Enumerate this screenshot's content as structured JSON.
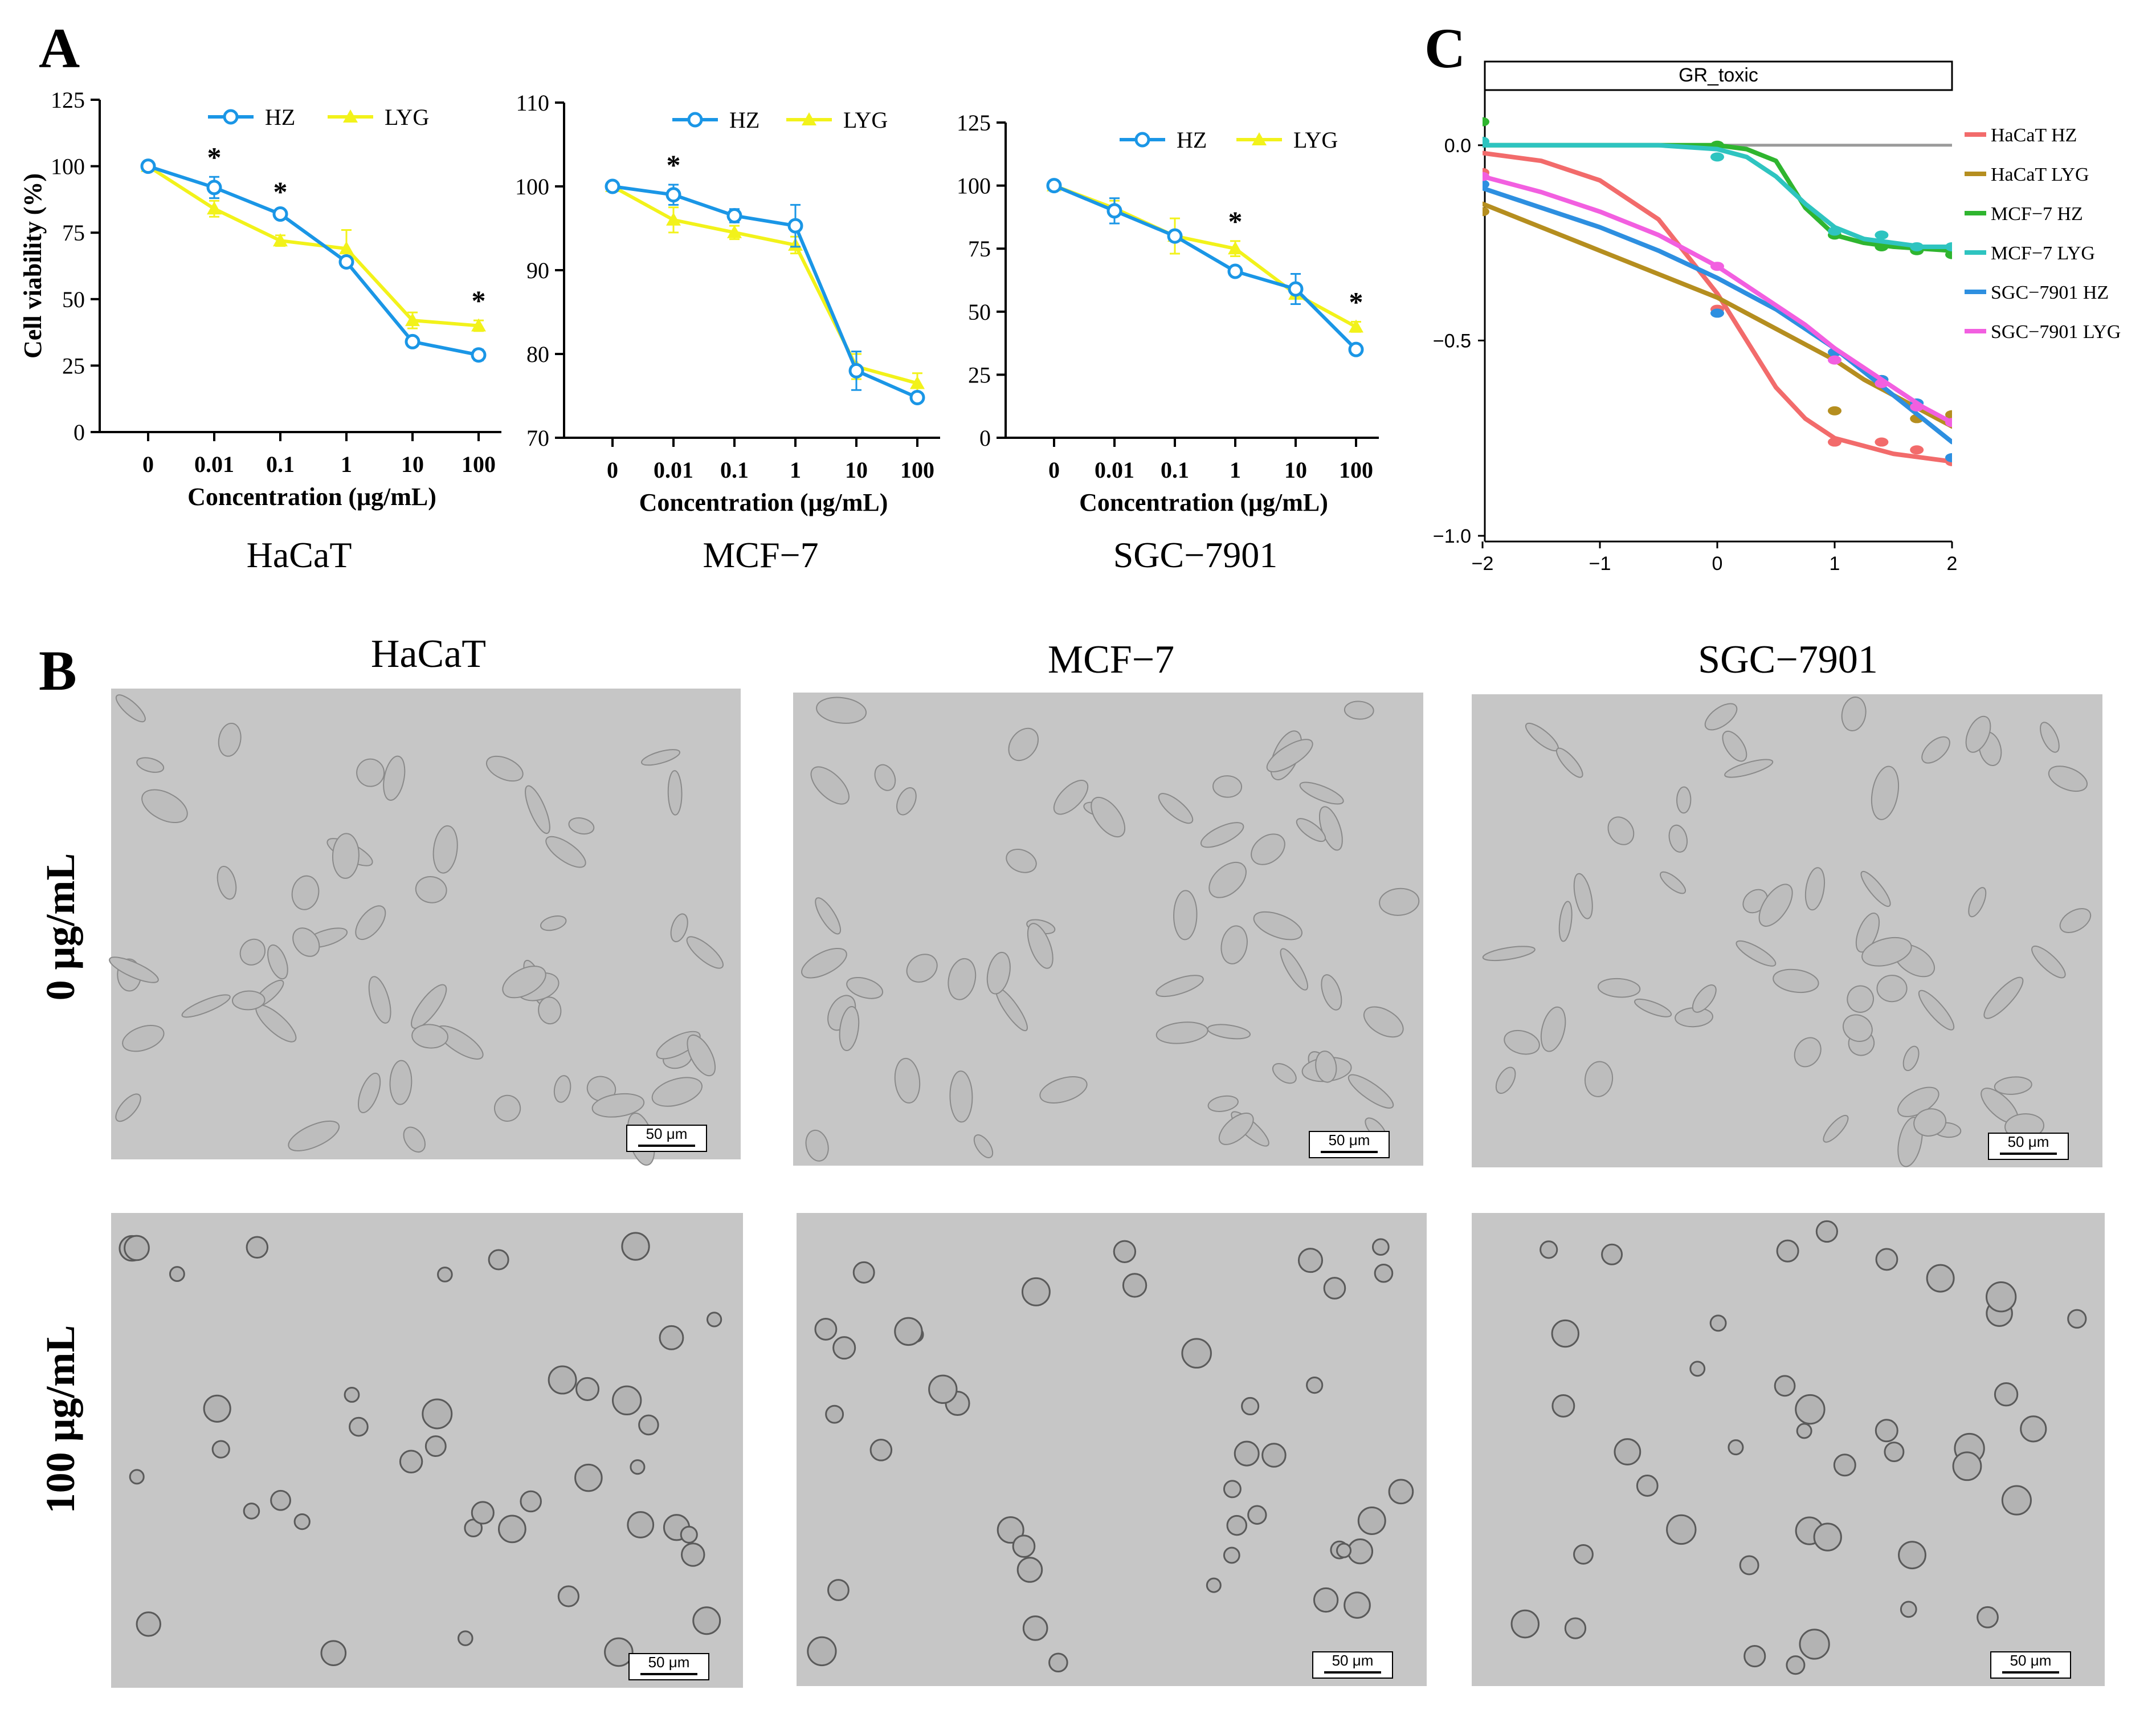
{
  "panel_letters": [
    "A",
    "B",
    "C"
  ],
  "colors": {
    "hz": "#1a96e6",
    "lyg": "#f2f21a",
    "axis": "#000000",
    "micro_bg": "#c6c6c6",
    "micro_cell": "#8a8a8a",
    "zero_line": "#9a9a9a"
  },
  "panel_a": {
    "x_ticks": [
      "0",
      "0.01",
      "0.1",
      "1",
      "10",
      "100"
    ],
    "xlabel": "Concentration (μg/mL)",
    "ylabel": "Cell viability (%)",
    "legend": [
      "HZ",
      "LYG"
    ],
    "star": "*"
  },
  "panel_b": {
    "columns": [
      "HaCaT",
      "MCF−7",
      "SGC−7901"
    ],
    "rows": [
      "0 μg/mL",
      "100 μg/mL"
    ],
    "scale_bar": "50 μm"
  },
  "chart_data": [
    {
      "type": "line",
      "title": "HaCaT",
      "xlabel": "Concentration (μg/mL)",
      "ylabel": "Cell viability (%)",
      "categories": [
        "0",
        "0.01",
        "0.1",
        "1",
        "10",
        "100"
      ],
      "ylim": [
        0,
        125
      ],
      "yticks": [
        0,
        25,
        50,
        75,
        100,
        125
      ],
      "series": [
        {
          "name": "HZ",
          "values": [
            100,
            92,
            82,
            64,
            34,
            29
          ],
          "errors": [
            0,
            4,
            1,
            1,
            1,
            2
          ]
        },
        {
          "name": "LYG",
          "values": [
            100,
            84,
            72,
            69,
            42,
            40
          ],
          "errors": [
            0,
            3,
            2,
            7,
            3,
            2
          ]
        }
      ],
      "significant": [
        "0.01",
        "0.1",
        "100"
      ]
    },
    {
      "type": "line",
      "title": "MCF−7",
      "xlabel": "Concentration (μg/mL)",
      "ylabel": "",
      "categories": [
        "0",
        "0.01",
        "0.1",
        "1",
        "10",
        "100"
      ],
      "ylim": [
        70,
        110
      ],
      "yticks": [
        70,
        80,
        90,
        100,
        110
      ],
      "series": [
        {
          "name": "HZ",
          "values": [
            100,
            99,
            96.5,
            95.3,
            78,
            74.8
          ],
          "errors": [
            0,
            1.2,
            0.8,
            2.5,
            2.3,
            0.5
          ]
        },
        {
          "name": "LYG",
          "values": [
            100,
            96,
            94.5,
            93,
            78.5,
            76.5
          ],
          "errors": [
            0,
            1.5,
            0.8,
            1,
            1.5,
            1.2
          ]
        }
      ],
      "significant": [
        "0.01"
      ]
    },
    {
      "type": "line",
      "title": "SGC−7901",
      "xlabel": "Concentration (μg/mL)",
      "ylabel": "",
      "categories": [
        "0",
        "0.01",
        "0.1",
        "1",
        "10",
        "100"
      ],
      "ylim": [
        0,
        125
      ],
      "yticks": [
        0,
        25,
        50,
        75,
        100,
        125
      ],
      "series": [
        {
          "name": "HZ",
          "values": [
            100,
            90,
            80,
            66,
            59,
            35
          ],
          "errors": [
            0,
            5,
            2,
            1,
            6,
            2
          ]
        },
        {
          "name": "LYG",
          "values": [
            100,
            91,
            80,
            75,
            57,
            44
          ],
          "errors": [
            0,
            3,
            7,
            3,
            4,
            2
          ]
        }
      ],
      "significant": [
        "1",
        "100"
      ]
    },
    {
      "type": "line",
      "title": "GR_toxic",
      "xlabel": "",
      "ylabel": "",
      "xlim": [
        -2,
        2
      ],
      "ylim": [
        -1.0,
        0.15
      ],
      "xticks": [
        -2,
        -1,
        0,
        1,
        2
      ],
      "xtick_labels": [
        "−2",
        "−1",
        "0",
        "1",
        "2"
      ],
      "yticks": [
        0.0,
        -0.5,
        -1.0
      ],
      "ytick_labels": [
        "0.0",
        "−0.5",
        "−1.0"
      ],
      "x": [
        -2,
        -1.5,
        -1,
        -0.5,
        0,
        0.25,
        0.5,
        0.75,
        1,
        1.25,
        1.5,
        1.75,
        2
      ],
      "series": [
        {
          "name": "HaCaT HZ",
          "color": "#f26b6b",
          "values": [
            -0.02,
            -0.04,
            -0.09,
            -0.19,
            -0.38,
            -0.5,
            -0.62,
            -0.7,
            -0.75,
            -0.77,
            -0.79,
            -0.8,
            -0.81
          ],
          "points": [
            [
              -2,
              -0.07
            ],
            [
              0,
              -0.42
            ],
            [
              1,
              -0.76
            ],
            [
              1.4,
              -0.76
            ],
            [
              1.7,
              -0.78
            ],
            [
              2,
              -0.81
            ]
          ]
        },
        {
          "name": "HaCaT LYG",
          "color": "#b58e1f",
          "values": [
            -0.15,
            -0.21,
            -0.27,
            -0.33,
            -0.39,
            -0.43,
            -0.47,
            -0.51,
            -0.55,
            -0.6,
            -0.64,
            -0.68,
            -0.72
          ],
          "points": [
            [
              -2,
              -0.17
            ],
            [
              -2,
              -0.08
            ],
            [
              1,
              -0.68
            ],
            [
              1.4,
              -0.6
            ],
            [
              1.7,
              -0.7
            ],
            [
              2,
              -0.69
            ]
          ]
        },
        {
          "name": "MCF−7 HZ",
          "color": "#2fb52f",
          "values": [
            0,
            0,
            0,
            0,
            0,
            -0.01,
            -0.04,
            -0.16,
            -0.23,
            -0.25,
            -0.26,
            -0.265,
            -0.27
          ],
          "points": [
            [
              -2,
              0.06
            ],
            [
              0,
              0.0
            ],
            [
              1,
              -0.23
            ],
            [
              1.4,
              -0.26
            ],
            [
              1.7,
              -0.27
            ],
            [
              2,
              -0.28
            ]
          ]
        },
        {
          "name": "MCF−7 LYG",
          "color": "#2ec4c0",
          "values": [
            0,
            0,
            0,
            0,
            -0.01,
            -0.03,
            -0.08,
            -0.15,
            -0.21,
            -0.24,
            -0.25,
            -0.26,
            -0.26
          ],
          "points": [
            [
              -2,
              0.01
            ],
            [
              0,
              -0.03
            ],
            [
              1,
              -0.22
            ],
            [
              1.4,
              -0.23
            ],
            [
              1.7,
              -0.26
            ],
            [
              2,
              -0.26
            ]
          ]
        },
        {
          "name": "SGC−7901 HZ",
          "color": "#2d8fe0",
          "values": [
            -0.11,
            -0.16,
            -0.21,
            -0.27,
            -0.34,
            -0.38,
            -0.42,
            -0.47,
            -0.52,
            -0.58,
            -0.64,
            -0.7,
            -0.76
          ],
          "points": [
            [
              -2,
              -0.1
            ],
            [
              0,
              -0.43
            ],
            [
              1,
              -0.53
            ],
            [
              1.4,
              -0.6
            ],
            [
              1.7,
              -0.66
            ],
            [
              2,
              -0.8
            ]
          ]
        },
        {
          "name": "SGC−7901 LYG",
          "color": "#f25fe0",
          "values": [
            -0.08,
            -0.12,
            -0.17,
            -0.23,
            -0.31,
            -0.36,
            -0.41,
            -0.46,
            -0.52,
            -0.57,
            -0.62,
            -0.67,
            -0.71
          ],
          "points": [
            [
              -2,
              -0.08
            ],
            [
              0,
              -0.31
            ],
            [
              1,
              -0.55
            ],
            [
              1.4,
              -0.61
            ],
            [
              1.7,
              -0.67
            ],
            [
              2,
              -0.71
            ]
          ]
        }
      ],
      "zero_line": 0.0
    }
  ]
}
